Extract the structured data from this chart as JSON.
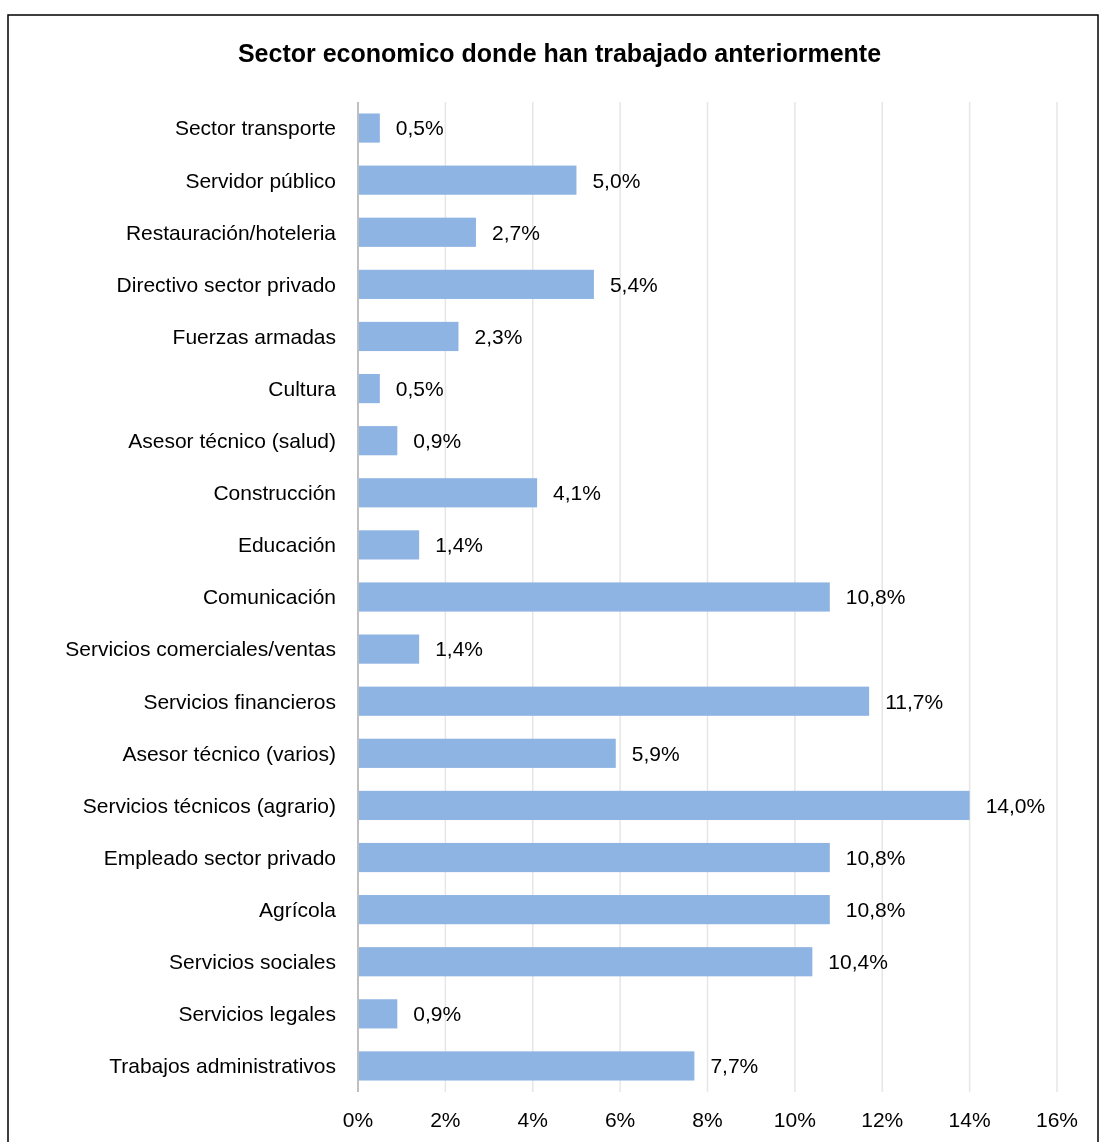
{
  "chart_data": {
    "type": "bar",
    "orientation": "horizontal",
    "title": "Sector economico donde han trabajado anteriormente",
    "categories": [
      "Sector transporte",
      "Servidor público",
      "Restauración/hoteleria",
      "Directivo sector privado",
      "Fuerzas armadas",
      "Cultura",
      "Asesor técnico (salud)",
      "Construcción",
      "Educación",
      "Comunicación",
      "Servicios comerciales/ventas",
      "Servicios financieros",
      "Asesor técnico (varios)",
      "Servicios técnicos (agrario)",
      "Empleado sector privado",
      "Agrícola",
      "Servicios sociales",
      "Servicios legales",
      "Trabajos administrativos"
    ],
    "values": [
      0.5,
      5.0,
      2.7,
      5.4,
      2.3,
      0.5,
      0.9,
      4.1,
      1.4,
      10.8,
      1.4,
      11.7,
      5.9,
      14.0,
      10.8,
      10.8,
      10.4,
      0.9,
      7.7
    ],
    "value_labels": [
      "0,5%",
      "5,0%",
      "2,7%",
      "5,4%",
      "2,3%",
      "0,5%",
      "0,9%",
      "4,1%",
      "1,4%",
      "10,8%",
      "1,4%",
      "11,7%",
      "5,9%",
      "14,0%",
      "10,8%",
      "10,8%",
      "10,4%",
      "0,9%",
      "7,7%"
    ],
    "color": "#8eb4e3",
    "xlim": [
      0,
      16
    ],
    "xticks": [
      {
        "value": 0,
        "label": "0%"
      },
      {
        "value": 2,
        "label": "2%"
      },
      {
        "value": 4,
        "label": "4%"
      },
      {
        "value": 6,
        "label": "6%"
      },
      {
        "value": 8,
        "label": "8%"
      },
      {
        "value": 10,
        "label": "10%"
      },
      {
        "value": 12,
        "label": "12%"
      },
      {
        "value": 14,
        "label": "14%"
      },
      {
        "value": 16,
        "label": "16%"
      }
    ],
    "grid": "x"
  }
}
